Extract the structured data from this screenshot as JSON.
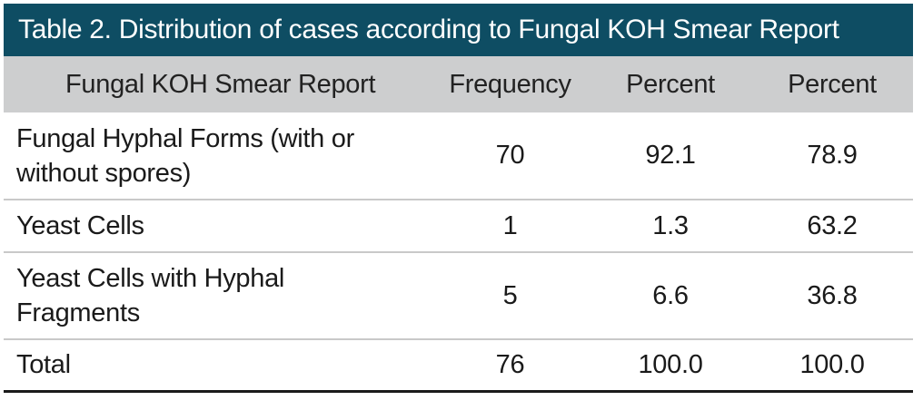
{
  "table": {
    "title": "Table 2. Distribution of cases according to Fungal KOH Smear Report",
    "headers": [
      "Fungal KOH Smear Report",
      "Frequency",
      "Percent",
      "Percent"
    ],
    "rows": [
      [
        "Fungal Hyphal Forms (with or without spores)",
        "70",
        "92.1",
        "78.9"
      ],
      [
        "Yeast Cells",
        "1",
        "1.3",
        "63.2"
      ],
      [
        "Yeast Cells with Hyphal Fragments",
        "5",
        "6.6",
        "36.8"
      ],
      [
        "Total",
        "76",
        "100.0",
        "100.0"
      ]
    ]
  }
}
